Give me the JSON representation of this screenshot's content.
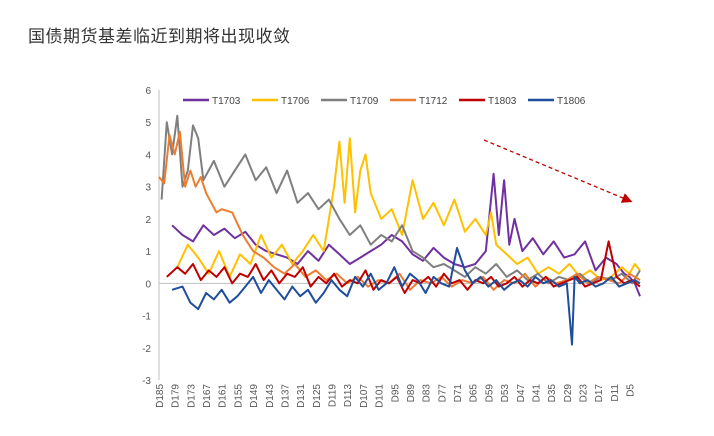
{
  "title": "国债期货基差临近到期将出现收敛",
  "chart_data": {
    "type": "line",
    "title": "国债期货基差临近到期将出现收敛",
    "xlabel": "",
    "ylabel": "",
    "ylim": [
      -3,
      6
    ],
    "yticks": [
      -3,
      -2,
      -1,
      0,
      1,
      2,
      3,
      4,
      5,
      6
    ],
    "x_range": [
      185,
      1
    ],
    "x_reversed": true,
    "xticks": [
      "D185",
      "D179",
      "D173",
      "D167",
      "D161",
      "D155",
      "D149",
      "D143",
      "D137",
      "D131",
      "D125",
      "D119",
      "D113",
      "D107",
      "D101",
      "D95",
      "D89",
      "D83",
      "D77",
      "D71",
      "D65",
      "D59",
      "D53",
      "D47",
      "D41",
      "D35",
      "D29",
      "D23",
      "D17",
      "D11",
      "D5"
    ],
    "legend_position": "top",
    "annotation": "dashed-arrow-downward-trend",
    "series": [
      {
        "name": "T1703",
        "color": "#7030A0",
        "x": [
          180,
          176,
          172,
          168,
          164,
          160,
          156,
          152,
          148,
          144,
          140,
          136,
          132,
          128,
          124,
          120,
          116,
          112,
          108,
          104,
          100,
          96,
          92,
          88,
          84,
          80,
          76,
          72,
          68,
          64,
          60,
          57,
          55,
          53,
          51,
          49,
          46,
          42,
          38,
          34,
          30,
          26,
          22,
          18,
          14,
          10,
          7,
          5,
          3,
          1
        ],
        "y": [
          1.8,
          1.5,
          1.3,
          1.8,
          1.5,
          1.7,
          1.4,
          1.6,
          1.2,
          1.0,
          0.9,
          0.8,
          0.6,
          1.0,
          0.7,
          1.2,
          0.9,
          0.6,
          0.8,
          1.0,
          1.2,
          1.5,
          1.3,
          0.9,
          0.7,
          1.1,
          0.8,
          0.6,
          0.5,
          0.6,
          1.0,
          3.4,
          1.5,
          3.2,
          1.2,
          2.0,
          1.0,
          1.4,
          0.9,
          1.3,
          0.8,
          0.9,
          1.3,
          0.4,
          0.8,
          0.6,
          0.3,
          0.2,
          0.0,
          -0.4
        ]
      },
      {
        "name": "T1706",
        "color": "#FFC000",
        "x": [
          178,
          174,
          170,
          166,
          162,
          158,
          154,
          150,
          146,
          142,
          138,
          134,
          130,
          126,
          122,
          118,
          116,
          114,
          112,
          110,
          108,
          106,
          104,
          100,
          96,
          92,
          88,
          84,
          80,
          76,
          72,
          68,
          64,
          60,
          58,
          56,
          52,
          48,
          44,
          40,
          36,
          32,
          28,
          24,
          20,
          16,
          12,
          8,
          5,
          3,
          1
        ],
        "y": [
          0.5,
          1.2,
          0.8,
          0.3,
          1.0,
          0.2,
          0.9,
          0.6,
          1.5,
          0.8,
          1.2,
          0.6,
          1.0,
          1.5,
          1.0,
          3.0,
          4.4,
          2.5,
          4.5,
          2.2,
          3.5,
          4.0,
          2.8,
          2.0,
          2.3,
          1.5,
          3.2,
          2.0,
          2.5,
          1.8,
          2.6,
          1.6,
          2.0,
          1.5,
          2.2,
          1.2,
          0.9,
          0.6,
          0.8,
          0.3,
          0.5,
          0.3,
          0.6,
          0.2,
          0.4,
          0.1,
          0.2,
          0.5,
          0.3,
          0.6,
          0.4
        ]
      },
      {
        "name": "T1709",
        "color": "#7F7F7F",
        "x": [
          184,
          182,
          180,
          178,
          176,
          174,
          172,
          170,
          168,
          164,
          160,
          156,
          152,
          148,
          144,
          140,
          136,
          132,
          128,
          124,
          120,
          116,
          112,
          108,
          104,
          100,
          96,
          92,
          88,
          84,
          80,
          76,
          72,
          68,
          64,
          60,
          56,
          52,
          48,
          44,
          40,
          36,
          32,
          28,
          24,
          20,
          16,
          12,
          8,
          4,
          1
        ],
        "y": [
          2.6,
          5.0,
          4.0,
          5.2,
          3.0,
          3.5,
          4.9,
          4.5,
          3.2,
          3.8,
          3.0,
          3.5,
          4.0,
          3.2,
          3.6,
          2.8,
          3.5,
          2.5,
          2.8,
          2.3,
          2.6,
          2.0,
          1.5,
          1.8,
          1.2,
          1.5,
          1.3,
          1.8,
          1.0,
          0.8,
          0.5,
          0.6,
          0.4,
          0.2,
          0.5,
          0.3,
          0.6,
          0.2,
          0.4,
          0.1,
          0.3,
          0.0,
          0.2,
          0.1,
          0.3,
          0.0,
          0.2,
          0.1,
          0.3,
          0.0,
          0.4
        ]
      },
      {
        "name": "T1712",
        "color": "#ED7D31",
        "x": [
          185,
          183,
          181,
          179,
          177,
          175,
          173,
          171,
          169,
          167,
          165,
          163,
          161,
          157,
          153,
          149,
          145,
          141,
          137,
          133,
          129,
          125,
          121,
          117,
          113,
          109,
          105,
          101,
          97,
          93,
          89,
          85,
          81,
          77,
          73,
          69,
          65,
          61,
          57,
          53,
          49,
          45,
          41,
          37,
          33,
          29,
          25,
          21,
          17,
          13,
          9,
          5,
          1
        ],
        "y": [
          3.3,
          3.1,
          4.6,
          4.0,
          4.7,
          3.0,
          3.5,
          3.0,
          3.3,
          2.8,
          2.5,
          2.2,
          2.3,
          2.2,
          1.5,
          1.0,
          0.8,
          0.5,
          0.3,
          0.6,
          0.2,
          0.4,
          0.1,
          0.3,
          0.0,
          0.2,
          -0.1,
          0.1,
          0.0,
          0.3,
          -0.2,
          0.1,
          0.0,
          0.2,
          -0.1,
          0.1,
          0.0,
          0.2,
          -0.2,
          0.1,
          0.0,
          0.3,
          -0.1,
          0.2,
          0.0,
          0.1,
          0.3,
          0.0,
          0.2,
          0.1,
          0.0,
          0.3,
          0.1
        ]
      },
      {
        "name": "T1803",
        "color": "#C00000",
        "x": [
          182,
          178,
          175,
          172,
          169,
          166,
          163,
          160,
          157,
          154,
          151,
          148,
          145,
          142,
          139,
          136,
          133,
          130,
          127,
          124,
          121,
          118,
          115,
          112,
          109,
          106,
          103,
          100,
          97,
          94,
          91,
          88,
          85,
          82,
          79,
          76,
          73,
          70,
          67,
          64,
          61,
          58,
          55,
          52,
          49,
          46,
          43,
          40,
          37,
          34,
          31,
          28,
          25,
          22,
          19,
          16,
          13,
          10,
          7,
          4,
          1
        ],
        "y": [
          0.2,
          0.5,
          0.3,
          0.6,
          0.1,
          0.4,
          0.2,
          0.5,
          0.0,
          0.3,
          0.2,
          0.6,
          0.1,
          0.4,
          0.0,
          0.3,
          0.2,
          0.5,
          -0.1,
          0.2,
          0.0,
          0.3,
          -0.1,
          0.1,
          0.0,
          0.4,
          -0.2,
          0.1,
          0.0,
          0.2,
          -0.3,
          0.1,
          0.0,
          0.2,
          -0.1,
          0.3,
          0.0,
          0.1,
          -0.2,
          0.1,
          0.0,
          0.2,
          -0.1,
          0.0,
          0.2,
          -0.1,
          0.1,
          0.0,
          0.2,
          -0.1,
          0.0,
          0.1,
          0.2,
          -0.1,
          0.0,
          0.1,
          1.3,
          0.2,
          0.0,
          0.1,
          -0.1
        ]
      },
      {
        "name": "T1806",
        "color": "#1F4E9C",
        "x": [
          180,
          176,
          173,
          170,
          167,
          164,
          161,
          158,
          155,
          152,
          149,
          146,
          143,
          140,
          137,
          134,
          131,
          128,
          125,
          122,
          119,
          116,
          113,
          110,
          107,
          104,
          101,
          98,
          95,
          92,
          89,
          86,
          83,
          80,
          77,
          74,
          71,
          68,
          65,
          62,
          59,
          56,
          53,
          50,
          47,
          44,
          41,
          38,
          35,
          32,
          29,
          27,
          26,
          24,
          21,
          18,
          15,
          12,
          9,
          6,
          3,
          1
        ],
        "y": [
          -0.2,
          -0.1,
          -0.6,
          -0.8,
          -0.3,
          -0.5,
          -0.2,
          -0.6,
          -0.4,
          -0.1,
          0.2,
          -0.3,
          0.1,
          -0.2,
          -0.5,
          -0.1,
          -0.4,
          -0.2,
          -0.6,
          -0.3,
          0.1,
          -0.2,
          -0.4,
          0.2,
          -0.1,
          0.3,
          -0.2,
          0.0,
          0.5,
          -0.1,
          0.3,
          0.1,
          -0.3,
          0.2,
          0.0,
          -0.1,
          1.1,
          0.4,
          0.0,
          0.2,
          -0.1,
          0.1,
          -0.2,
          0.0,
          0.1,
          -0.1,
          0.2,
          0.0,
          0.1,
          -0.1,
          0.0,
          -1.9,
          0.2,
          0.0,
          0.1,
          -0.1,
          0.0,
          0.2,
          -0.1,
          0.0,
          0.1,
          0.0
        ]
      }
    ]
  }
}
